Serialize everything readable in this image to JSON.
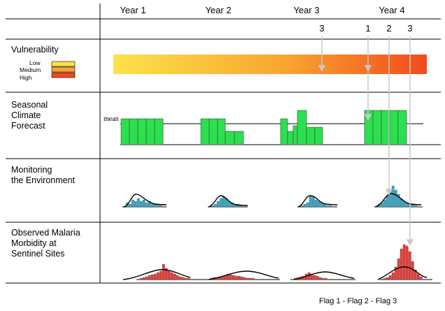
{
  "years": [
    "Year 1",
    "Year 2",
    "Year 3",
    "Year 4"
  ],
  "flag_numbers": [
    "3",
    "1",
    "2",
    "3"
  ],
  "rows": {
    "vulnerability": {
      "label": "Vulnerability",
      "legend": [
        "Low",
        "Medium",
        "High"
      ],
      "gradient_colors": [
        "#fbe24a",
        "#f9a530",
        "#f24a1d"
      ]
    },
    "forecast": {
      "label": "Seasonal\nClimate\nForecast",
      "mean_label": "mean",
      "bar_color": "#2be04f"
    },
    "environment": {
      "label": "Monitoring\nthe Environment",
      "bar_color": "#35a6c8"
    },
    "malaria": {
      "label": "Observed Malaria\nMorbidity at\nSentinel Sites",
      "bar_color": "#e83a36"
    }
  },
  "footer": "Flag 1 - Flag 2 -  Flag 3"
}
